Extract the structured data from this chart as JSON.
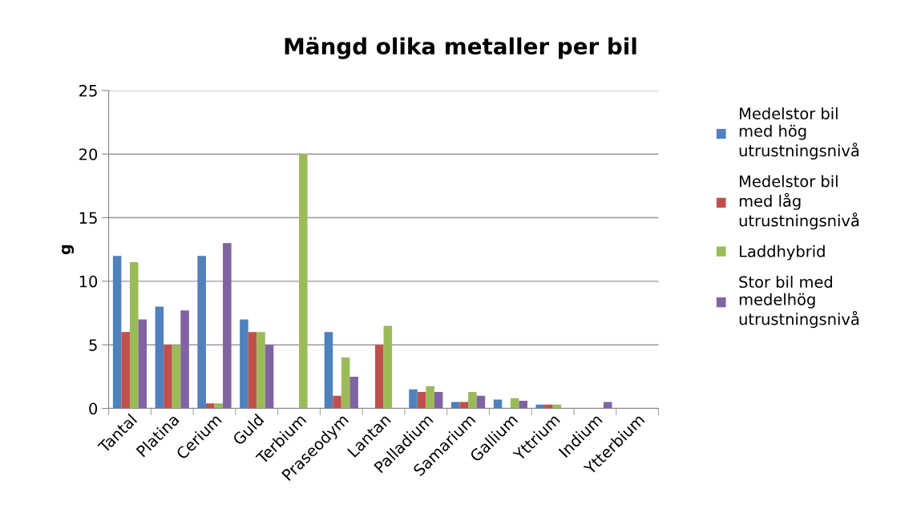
{
  "chart_data": {
    "type": "bar",
    "title": "Mängd olika metaller per bil",
    "ylabel": "g",
    "categories": [
      "Tantal",
      "Platina",
      "Cerium",
      "Guld",
      "Terbium",
      "Praseodym",
      "Lantan",
      "Palladium",
      "Samarium",
      "Gallium",
      "Yttrium",
      "Indium",
      "Ytterbium"
    ],
    "series": [
      {
        "name": "Medelstor bil\nmed hög\nutrustningsnivå",
        "color": "#4f81bd",
        "values": [
          12,
          8,
          12,
          7,
          null,
          6,
          null,
          1.5,
          0.5,
          0.7,
          0.3,
          null,
          null
        ]
      },
      {
        "name": "Medelstor bil\nmed låg\nutrustningsnivå",
        "color": "#c0504d",
        "values": [
          6,
          5,
          0.4,
          6,
          null,
          1,
          5,
          1.3,
          0.5,
          null,
          0.3,
          null,
          null
        ]
      },
      {
        "name": "Laddhybrid",
        "color": "#9bbb59",
        "values": [
          11.5,
          5,
          0.4,
          6,
          20,
          4,
          6.5,
          1.75,
          1.3,
          0.8,
          0.3,
          null,
          null
        ]
      },
      {
        "name": "Stor bil med\nmedelhög\nutrustningsnivå",
        "color": "#8064a2",
        "values": [
          7,
          7.7,
          13,
          5,
          null,
          2.5,
          null,
          1.3,
          1,
          0.6,
          null,
          0.5,
          null
        ]
      }
    ],
    "ylim": [
      0,
      25
    ],
    "yticks": [
      0,
      5,
      10,
      15,
      20,
      25
    ],
    "grid": "y",
    "legend": "right"
  }
}
